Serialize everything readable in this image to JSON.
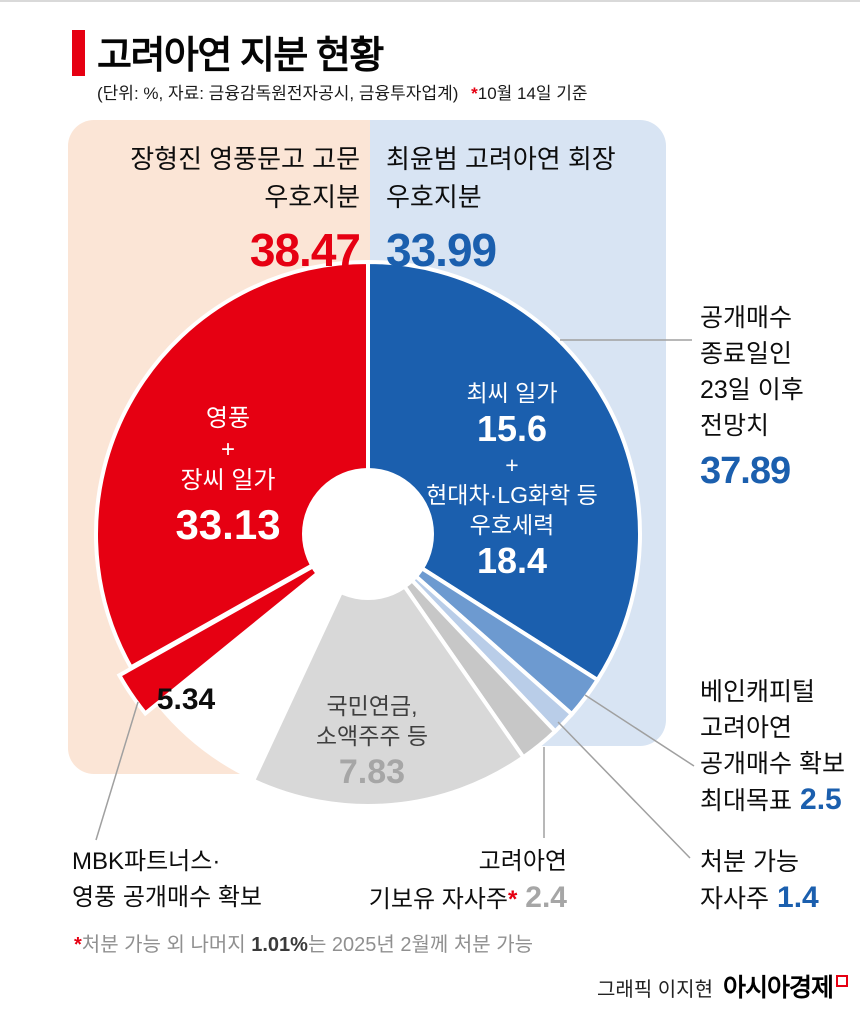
{
  "header": {
    "title": "고려아연 지분 현황",
    "subtitle": "(단위: %, 자료: 금융감독원전자공시, 금융투자업계)",
    "asof_star": "*",
    "asof": "10월 14일 기준"
  },
  "colors": {
    "red": "#e60012",
    "blue": "#1b5fae",
    "blue_light": "#6d9ad0",
    "blue_lighter": "#b9cde8",
    "gray_slice": "#d8d8d8",
    "gray_slice_dark": "#c7c7c7",
    "gray_value": "#a6a6a6",
    "panel_red": "#fbe5d6",
    "panel_blue": "#d8e4f3",
    "leader": "#a0a0a0"
  },
  "top_labels": {
    "left": {
      "line1": "장형진 영풍문고 고문",
      "line2": "우호지분",
      "value": "38.47"
    },
    "right": {
      "line1": "최윤범 고려아연 회장",
      "line2": "우호지분",
      "value": "33.99"
    }
  },
  "chart_data": {
    "type": "pie",
    "title": "고려아연 지분 현황",
    "unit": "%",
    "as_of": "10월 14일 기준",
    "source": "금융감독원전자공시, 금융투자업계",
    "slices": [
      {
        "id": "choi-friendly",
        "label": "최씨 일가 + 현대차·LG화학 등 우호세력",
        "value": 33.99,
        "color": "#1b5fae",
        "breakdown": [
          {
            "label": "최씨 일가",
            "value": 15.6
          },
          {
            "label": "현대차·LG화학 등 우호세력",
            "value": 18.4
          }
        ]
      },
      {
        "id": "bain-tender",
        "label": "베인캐피털 고려아연 공개매수 확보 최대목표",
        "value": 2.5,
        "color": "#6d9ad0"
      },
      {
        "id": "disposable-treasury",
        "label": "처분 가능 자사주",
        "value": 1.4,
        "color": "#b9cde8"
      },
      {
        "id": "treasury-held",
        "label": "고려아연 기보유 자사주",
        "value": 2.4,
        "color": "#c7c7c7"
      },
      {
        "id": "pension-minor",
        "label": "국민연금, 소액주주 등",
        "value": 7.83,
        "visual_percent": 16.6,
        "color": "#d8d8d8"
      },
      {
        "id": "mbk-tender",
        "label": "MBK파트너스·영풍 공개매수 확보",
        "value": 5.34,
        "visual_percent": 2.7,
        "gap_before": 7.2,
        "explode": 14,
        "color": "#e60012"
      },
      {
        "id": "youngpoong-jang",
        "label": "영풍 + 장씨 일가",
        "value": 33.13,
        "color": "#e60012"
      }
    ],
    "totals": {
      "jang_friendly": 38.47,
      "choi_friendly": 33.99,
      "choi_forecast_after_tender": 37.89
    }
  },
  "pie_labels": {
    "red": {
      "l1": "영풍",
      "plus": "+",
      "l2": "장씨 일가",
      "value": "33.13"
    },
    "blue": {
      "l1": "최씨 일가",
      "v1": "15.6",
      "plus": "+",
      "l2": "현대차·LG화학 등",
      "l3": "우호세력",
      "v2": "18.4"
    },
    "gray": {
      "l1": "국민연금,",
      "l2": "소액주주 등",
      "value": "7.83"
    },
    "mbk_value": "5.34"
  },
  "annotations": {
    "forecast": {
      "l1": "공개매수",
      "l2": "종료일인",
      "l3": "23일 이후",
      "l4": "전망치",
      "value": "37.89"
    },
    "bain": {
      "l1": "베인캐피털",
      "l2": "고려아연",
      "l3": "공개매수 확보",
      "l4_prefix": "최대목표",
      "value": "2.5"
    },
    "disposable": {
      "l1": "처분 가능",
      "l2_prefix": "자사주",
      "value": "1.4"
    },
    "mbk": {
      "l1": "MBK파트너스·",
      "l2": "영풍 공개매수 확보"
    },
    "treasury": {
      "l1": "고려아연",
      "l2_prefix": "기보유 자사주",
      "star": "*",
      "value": "2.4"
    }
  },
  "footnote": {
    "star": "*",
    "pre": "처분 가능 외 나머지 ",
    "bold": "1.01%",
    "post": "는 2025년 2월께 처분 가능"
  },
  "credit": {
    "byline": "그래픽 이지현",
    "brand": "아시아경제"
  }
}
